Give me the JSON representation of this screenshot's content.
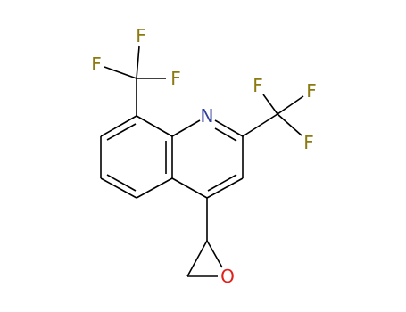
{
  "atoms": [
    "F",
    "F",
    "F",
    "N",
    "F",
    "F",
    "F",
    "O"
  ]
}
